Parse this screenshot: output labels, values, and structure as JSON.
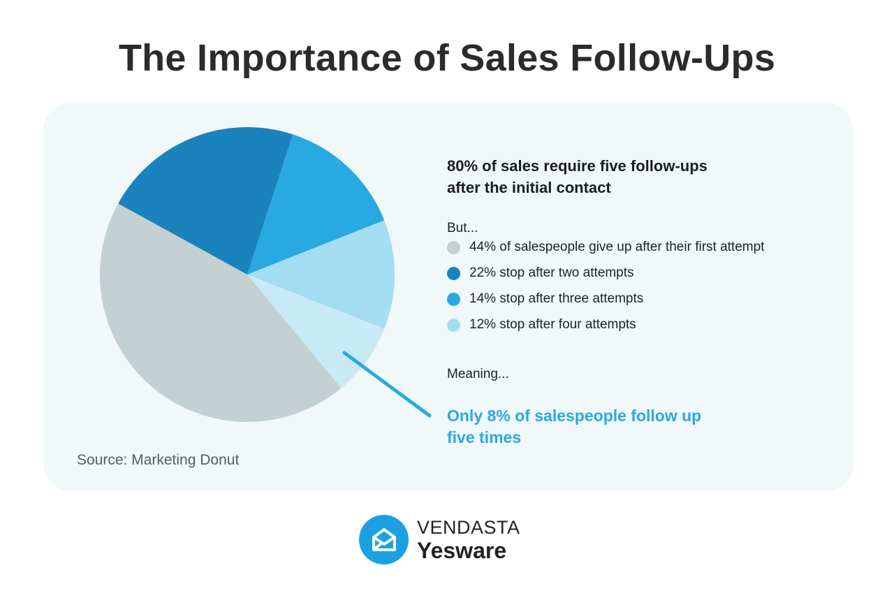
{
  "title": "The Importance of Sales Follow-Ups",
  "chart_data": {
    "type": "pie",
    "title": "The Importance of Sales Follow-Ups",
    "slices": [
      {
        "label": "14% stop after three attempts",
        "value": 14,
        "color": "#29a9e1"
      },
      {
        "label": "12% stop after four attempts",
        "value": 12,
        "color": "#a5ddf2"
      },
      {
        "label": "Only 8% of salespeople follow up five times",
        "value": 8,
        "color": "#c8eaf7"
      },
      {
        "label": "44% of salespeople give up after their first attempt",
        "value": 44,
        "color": "#c3d1d2"
      },
      {
        "label": "22% stop after two attempts",
        "value": 22,
        "color": "#1a83bd"
      }
    ],
    "start_angle_deg": 18,
    "legend_placement": "right"
  },
  "panel": {
    "headline_line1": "80% of sales require five follow-ups",
    "headline_line2": "after the initial contact",
    "but": "But...",
    "legend": [
      {
        "text": "44% of salespeople give up after their first attempt",
        "color": "#c3d1d2"
      },
      {
        "text": "22% stop after two attempts",
        "color": "#1a83bd"
      },
      {
        "text": "14% stop after three attempts",
        "color": "#29a9e1"
      },
      {
        "text": "12% stop after four attempts",
        "color": "#a5ddf2"
      }
    ],
    "meaning": "Meaning...",
    "callout_line1": "Only 8% of salespeople follow up",
    "callout_line2": "five times",
    "callout_color": "#29a9e1"
  },
  "source": "Source: Marketing Donut",
  "logo": {
    "line1": "VENDASTA",
    "line2": "Yesware",
    "icon": "envelope-open-icon",
    "color": "#1ba1e2"
  }
}
